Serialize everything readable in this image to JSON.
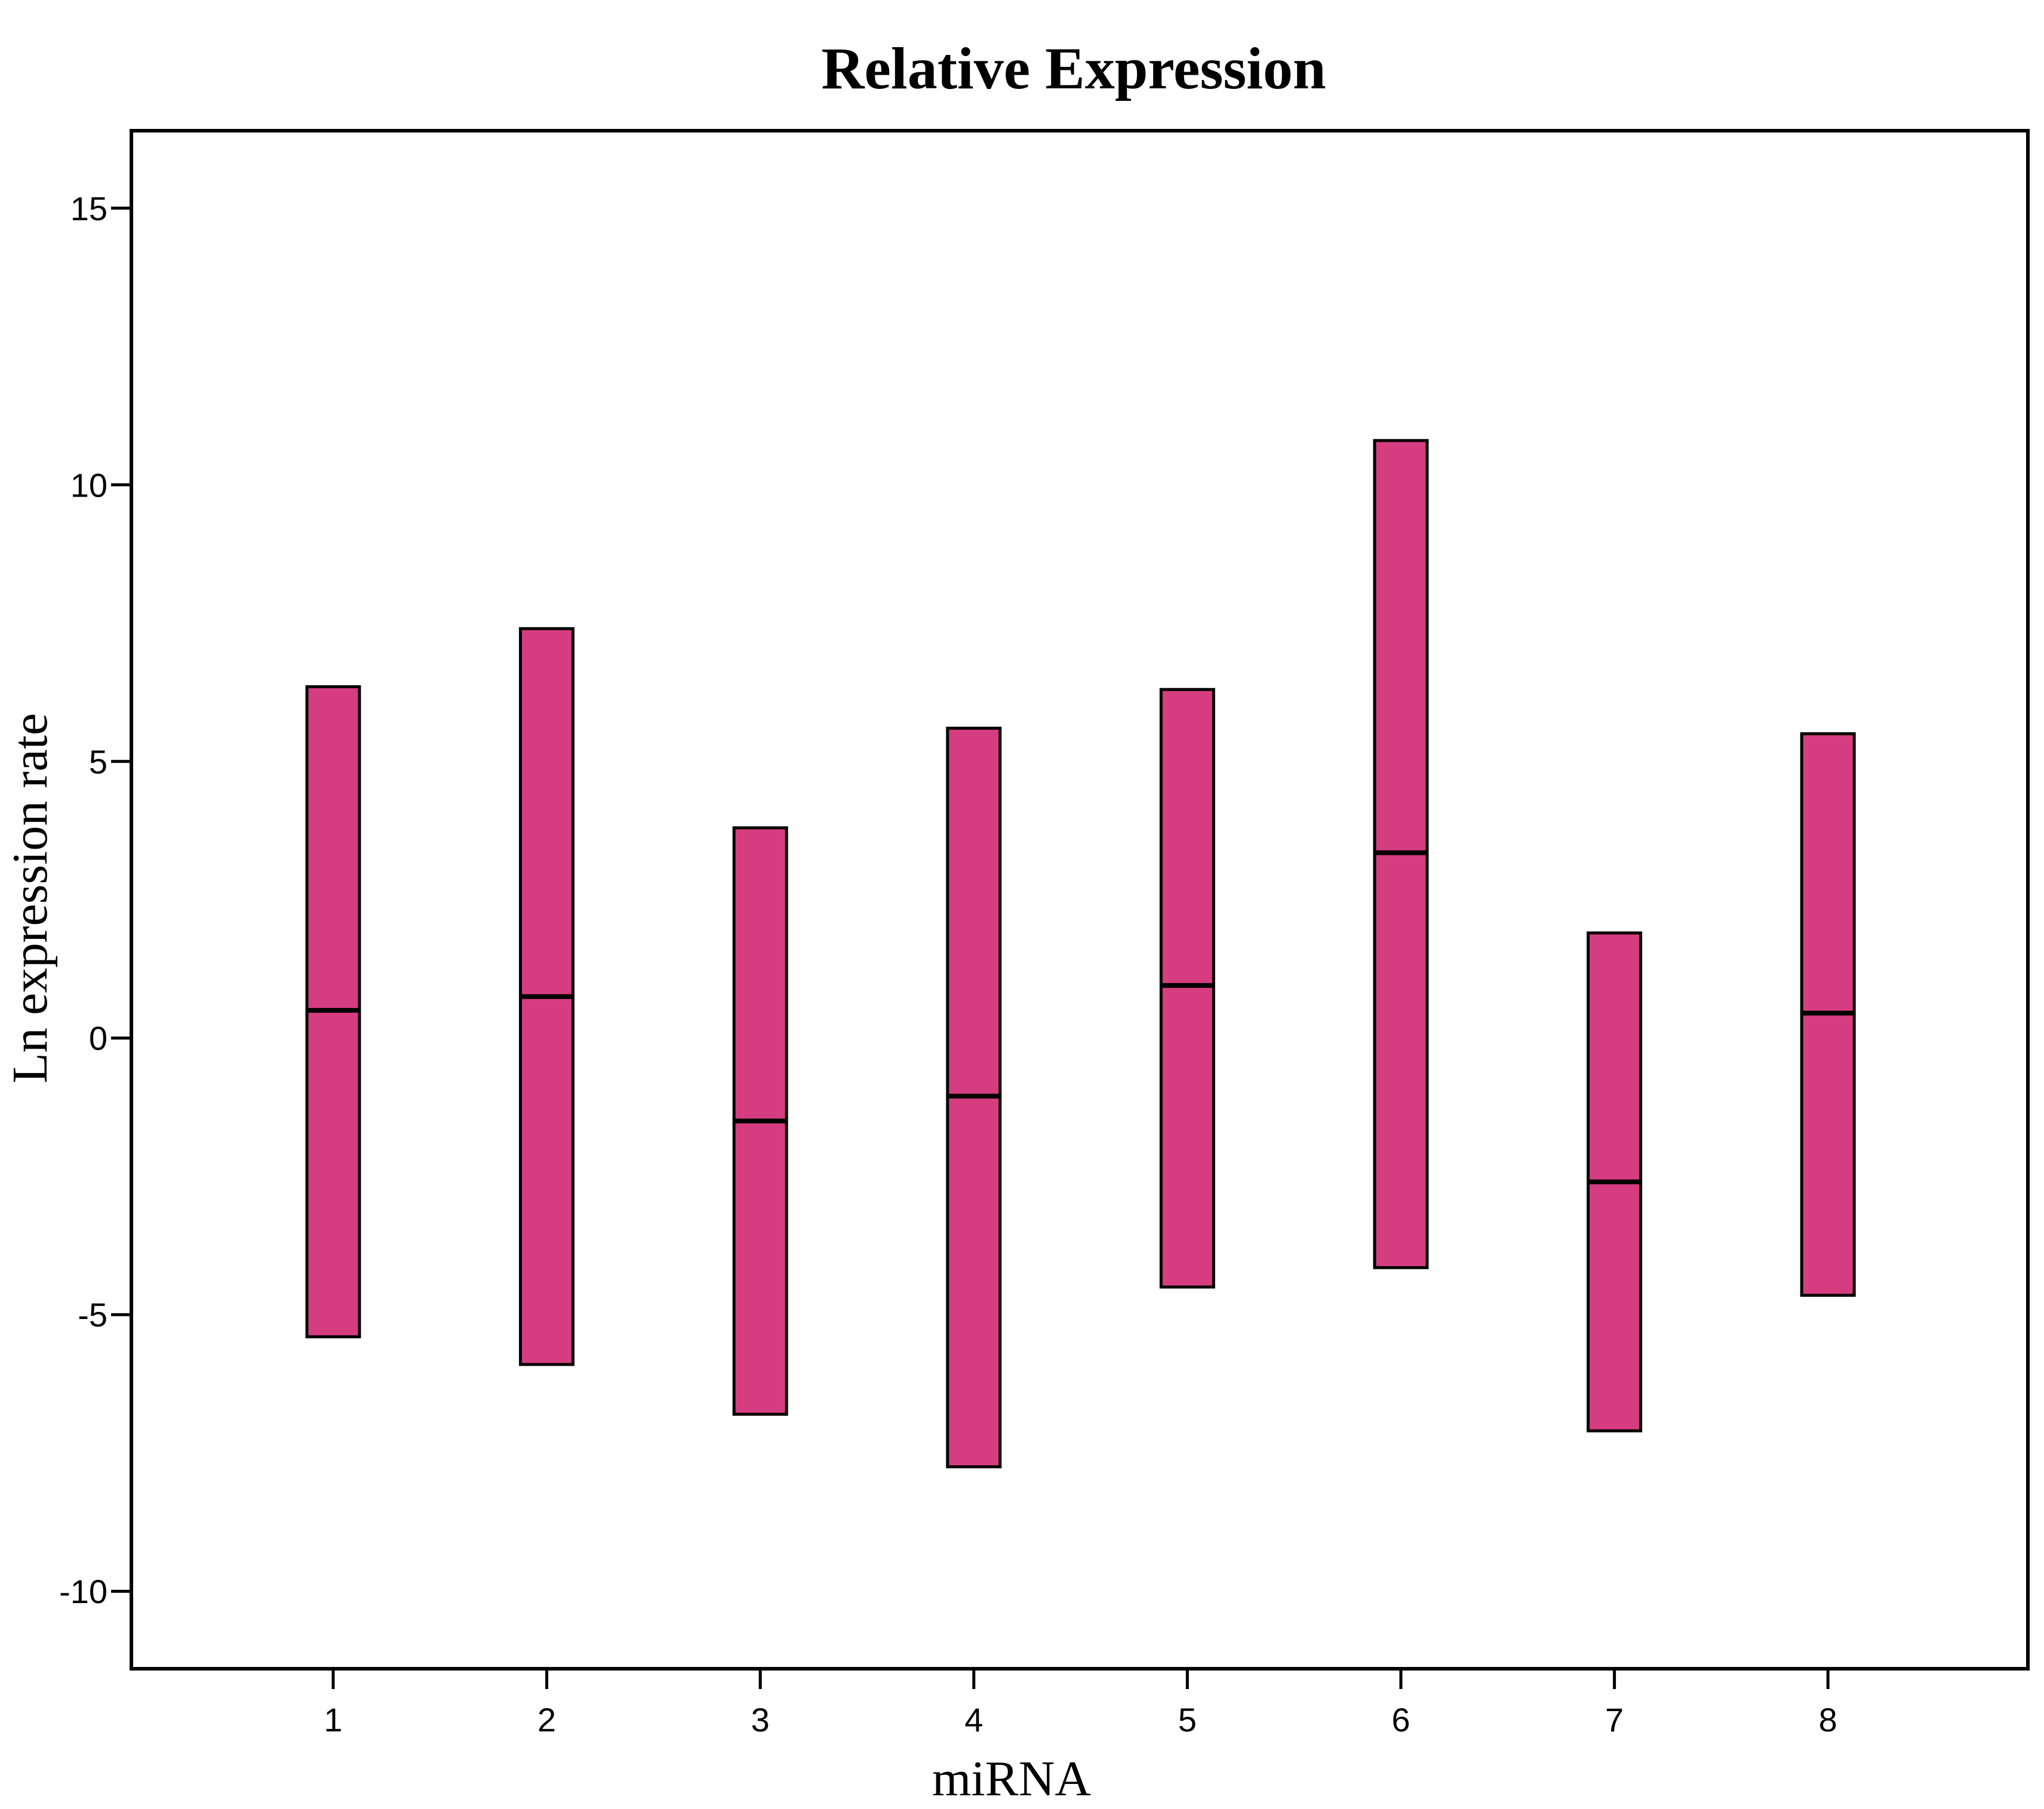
{
  "chart_data": {
    "type": "range-bar",
    "title": "Relative Expression",
    "xlabel": "miRNA",
    "ylabel": "Ln expression rate",
    "categories": [
      "1",
      "2",
      "3",
      "4",
      "5",
      "6",
      "7",
      "8"
    ],
    "ranges": [
      {
        "category": "1",
        "low": -5.4,
        "high": 6.35,
        "mid": 0.5
      },
      {
        "category": "2",
        "low": -5.9,
        "high": 7.4,
        "mid": 0.75
      },
      {
        "category": "3",
        "low": -6.8,
        "high": 3.8,
        "mid": -1.5
      },
      {
        "category": "4",
        "low": -7.75,
        "high": 5.6,
        "mid": -1.05
      },
      {
        "category": "5",
        "low": -4.5,
        "high": 6.3,
        "mid": 0.95
      },
      {
        "category": "6",
        "low": -4.15,
        "high": 10.8,
        "mid": 3.35
      },
      {
        "category": "7",
        "low": -7.1,
        "high": 1.9,
        "mid": -2.6
      },
      {
        "category": "8",
        "low": -4.65,
        "high": 5.5,
        "mid": 0.45
      }
    ],
    "yticks": [
      "-10",
      "-5",
      "0",
      "5",
      "10",
      "15"
    ],
    "ylim": [
      -11.4,
      16.4
    ],
    "bar_color": "#d63d80",
    "grid": false,
    "legend": "none"
  }
}
